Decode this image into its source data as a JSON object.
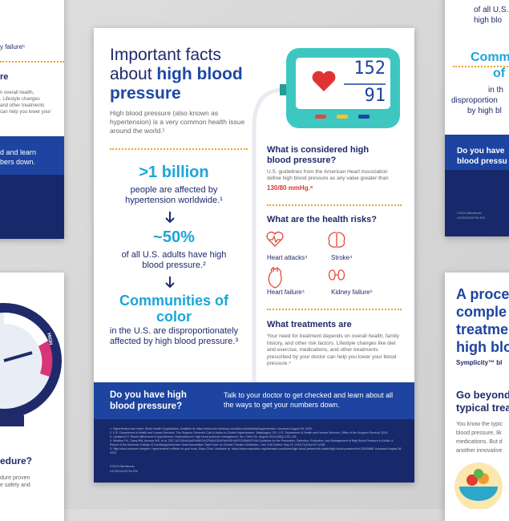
{
  "main": {
    "title_lead": "Important facts about ",
    "title_em": "high blood pressure",
    "intro": "High blood pressure (also known as hypertension) is a very common health issue around the world.¹",
    "stats": [
      {
        "big": ">1 billion",
        "text": "people are affected by hypertension worldwide.¹"
      },
      {
        "big": "~50%",
        "text": "of all U.S. adults have high blood pressure.²"
      },
      {
        "big": "Communities of color",
        "text": "in the U.S. are disproportionately affected by high blood pressure.³"
      }
    ],
    "monitor": {
      "systolic": "152",
      "diastolic": "91"
    },
    "considered": {
      "heading": "What is considered high blood pressure?",
      "text": "U.S. guidelines from the American Heart Association define high blood pressure as any value greater than",
      "threshold": "130/80 mmHg.⁶"
    },
    "risks": {
      "heading": "What are the health risks?",
      "items": [
        "Heart attacks⁴",
        "Stroke⁴",
        "Heart failure⁴",
        "Kidney failure⁵"
      ]
    },
    "treatments": {
      "heading": "What treatments are",
      "text": "Your need for treatment depends on overall health, family history, and other risk factors. Lifestyle changes like diet and exercise, medications, and other treatments prescribed by your doctor can help you lower your blood pressure.⁴"
    },
    "cta": {
      "question": "Do you have high blood pressure?",
      "text": "Talk to your doctor to get checked and learn about all the ways to get your numbers down."
    },
    "footnotes": [
      "1. Hypertension fact sheet. World Health Organization. Available at: https://www.who.int/news-room/fact-sheets/detail/hypertension. Accessed August 28, 2023.",
      "2. U.S. Department of Health and Human Services. The Surgeon General's Call to Action to Control Hypertension. Washington, DC: U.S. Department of Health and Human Services, Office of the Surgeon General; 2020.",
      "3. Lackland DT. Racial differences in hypertension: implications for high blood pressure management. Am J Med Sci. August 2014;348(2):135–138.",
      "4. Whelton PK, Carey RM, Aronow WS, et al. 2017 ACC/AHA/AAPA/ABC/ACPM/AGS/APhA/ASH/ASPC/NMA/PCNA Guideline for the Prevention, Detection, Evaluation, and Management of High Blood Pressure in Adults: A Report of the American College of Cardiology/American Heart Association Task Force on Clinical Practice Guidelines. J Am Coll Cardiol. May 15, 2018;71(19):e127-e248.",
      "5. High blood pressure dangers: Hypertension's effects on your body. Mayo Clinic. Available at: https://www.mayoclinic.org/diseases-conditions/high-blood-pressure/in-depth/high-blood-pressure/art-20045868. Accessed August 28, 2023."
    ],
    "copyright": "©2024 Medtronic.",
    "code": "UC202412079c EN"
  },
  "left_top": [
    "y failure⁵",
    "re",
    "n overall health,",
    ". Lifestyle changes",
    "and other treatments",
    "can help you lower your",
    "d and learn",
    "bers down."
  ],
  "left_bottom": {
    "normal": "RMAL",
    "high": "HIGH",
    "lines": [
      "edure?",
      "dure proven",
      "e safely and"
    ]
  },
  "right_top": [
    "of all U.S.",
    "high blo",
    "Comm",
    "of",
    "in th",
    "disproportion",
    "by high bl",
    "Do you have",
    "blood pressu",
    "©2024 Medtronic.",
    "UC202412079c EN"
  ],
  "right_bottom": [
    "A proce",
    "comple",
    "treatme",
    "high blo",
    "Symplicity™ bl",
    "Go beyond",
    "typical trea",
    "You know the typic",
    "blood pressure, lik",
    "medications. But d",
    "another innovative"
  ]
}
